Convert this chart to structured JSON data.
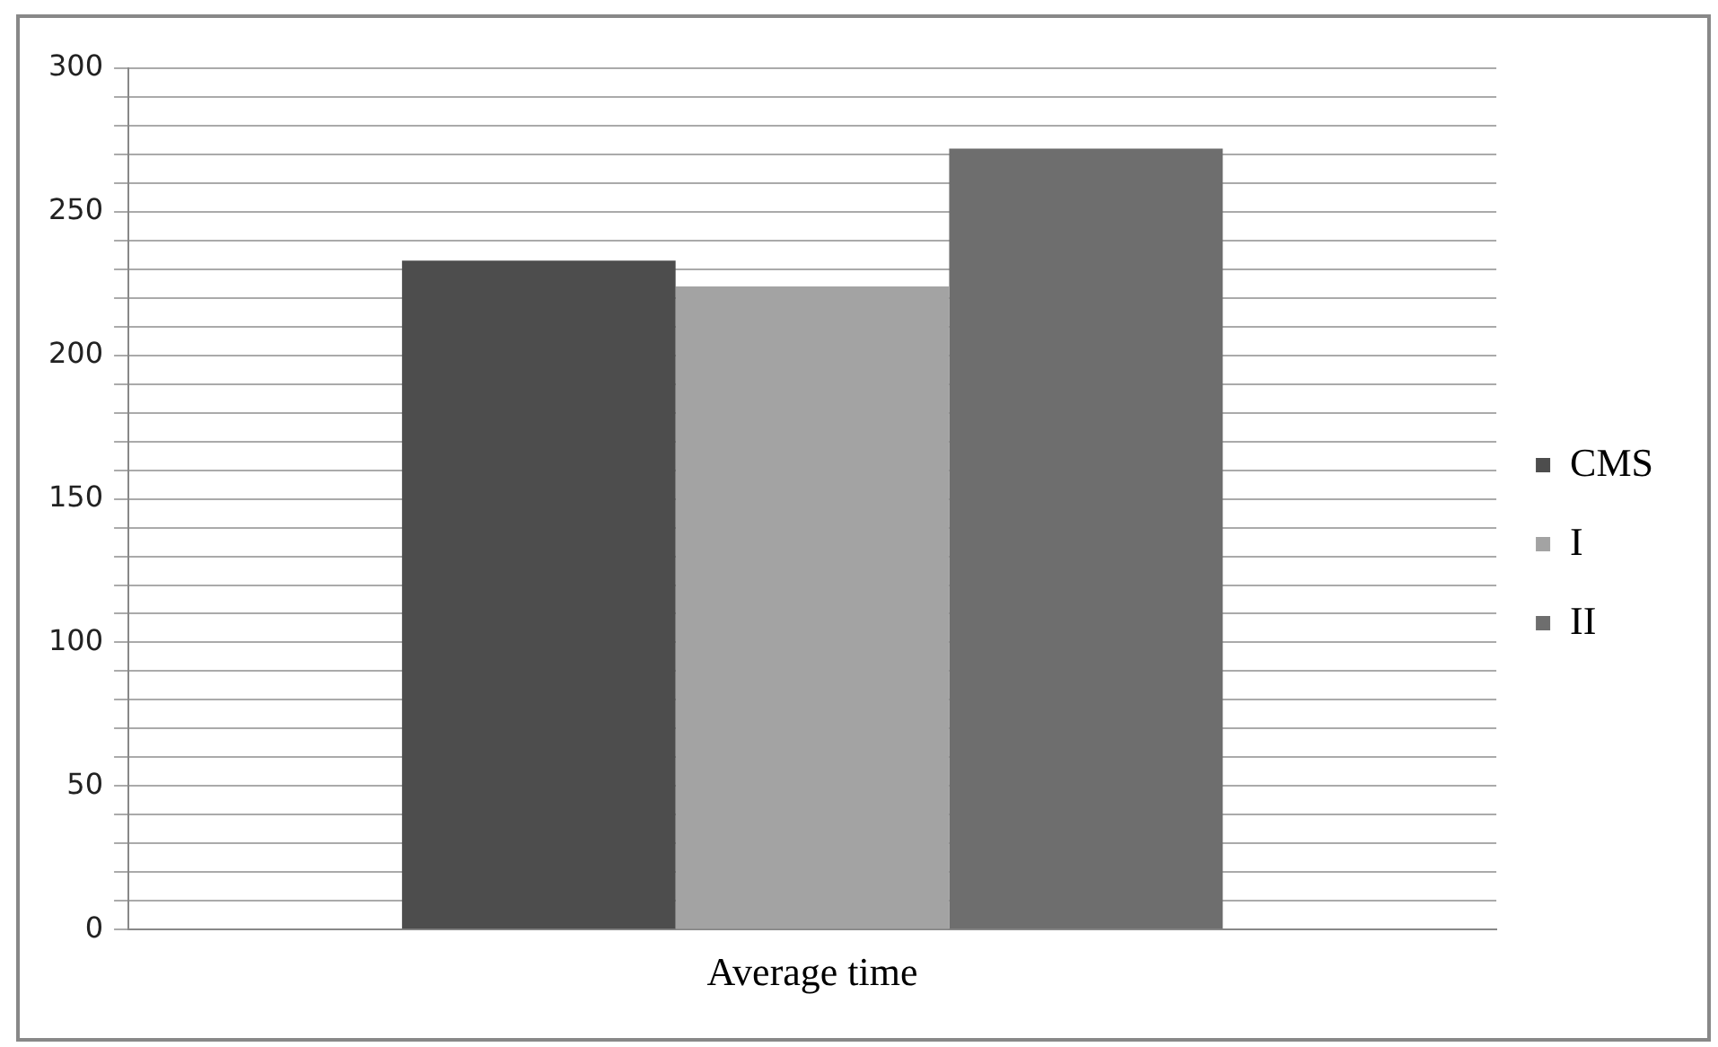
{
  "chart_data": {
    "type": "bar",
    "categories": [
      "Average time"
    ],
    "series": [
      {
        "name": "CMS",
        "color": "#4d4d4d",
        "values": [
          233
        ]
      },
      {
        "name": "I",
        "color": "#a3a3a3",
        "values": [
          224
        ]
      },
      {
        "name": "II",
        "color": "#6e6e6e",
        "values": [
          272
        ]
      }
    ],
    "ylim": [
      0,
      300
    ],
    "yticks": [
      0,
      {
        "value": 10,
        "label": null
      },
      {
        "value": 20,
        "label": null
      },
      {
        "value": 30,
        "label": null
      },
      {
        "value": 40,
        "label": null
      },
      50,
      {
        "value": 60,
        "label": null
      },
      {
        "value": 70,
        "label": null
      },
      {
        "value": 80,
        "label": null
      },
      {
        "value": 90,
        "label": null
      },
      100,
      {
        "value": 110,
        "label": null
      },
      {
        "value": 120,
        "label": null
      },
      {
        "value": 130,
        "label": null
      },
      {
        "value": 140,
        "label": null
      },
      150,
      {
        "value": 160,
        "label": null
      },
      {
        "value": 170,
        "label": null
      },
      {
        "value": 180,
        "label": null
      },
      {
        "value": 190,
        "label": null
      },
      200,
      {
        "value": 210,
        "label": null
      },
      {
        "value": 220,
        "label": null
      },
      {
        "value": 230,
        "label": null
      },
      {
        "value": 240,
        "label": null
      },
      250,
      {
        "value": 260,
        "label": null
      },
      {
        "value": 270,
        "label": null
      },
      {
        "value": 280,
        "label": null
      },
      {
        "value": 290,
        "label": null
      },
      300
    ],
    "grid": "y",
    "legend": "right"
  }
}
